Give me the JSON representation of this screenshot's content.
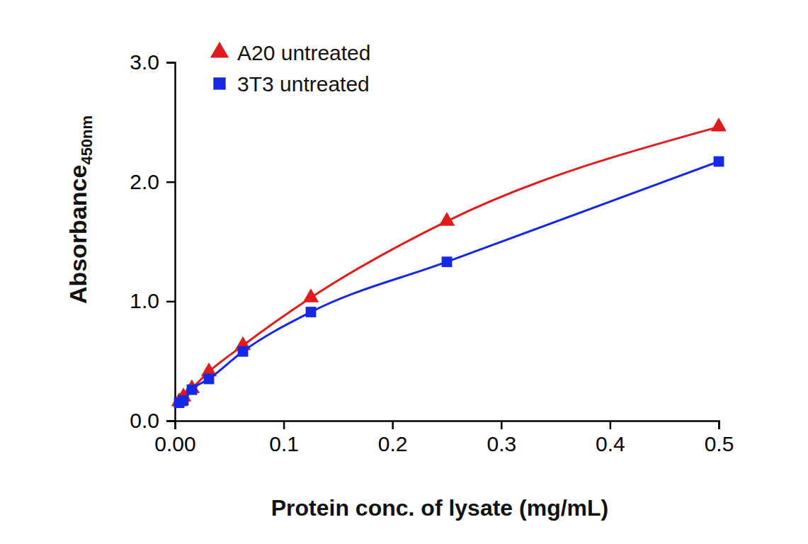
{
  "chart_data": {
    "type": "line",
    "x_label": "Protein conc. of lysate (mg/mL)",
    "y_label": "Absorbance",
    "y_label_subscript": "450nm",
    "x": [
      0.0039,
      0.0078,
      0.0156,
      0.03125,
      0.0625,
      0.125,
      0.25,
      0.5
    ],
    "series": [
      {
        "name": "A20 untreated",
        "color": "#e31a1c",
        "marker": "triangle",
        "values": [
          0.16,
          0.2,
          0.27,
          0.41,
          0.63,
          1.03,
          1.67,
          2.46
        ]
      },
      {
        "name": "3T3 untreated",
        "color": "#1428e6",
        "marker": "square",
        "values": [
          0.15,
          0.17,
          0.26,
          0.35,
          0.58,
          0.91,
          1.33,
          2.17
        ]
      }
    ],
    "xlim": [
      0,
      0.5
    ],
    "xticks": [
      {
        "value": 0,
        "label": "0.00"
      },
      0.1,
      0.2,
      0.3,
      0.4,
      0.5
    ],
    "ylim": [
      0,
      3.0
    ],
    "yticks": [
      {
        "value": 0,
        "label": "0.0"
      },
      {
        "value": 1,
        "label": "1.0"
      },
      {
        "value": 2,
        "label": "2.0"
      },
      {
        "value": 3,
        "label": "3.0"
      }
    ],
    "grid": false,
    "legend": "upper left"
  }
}
